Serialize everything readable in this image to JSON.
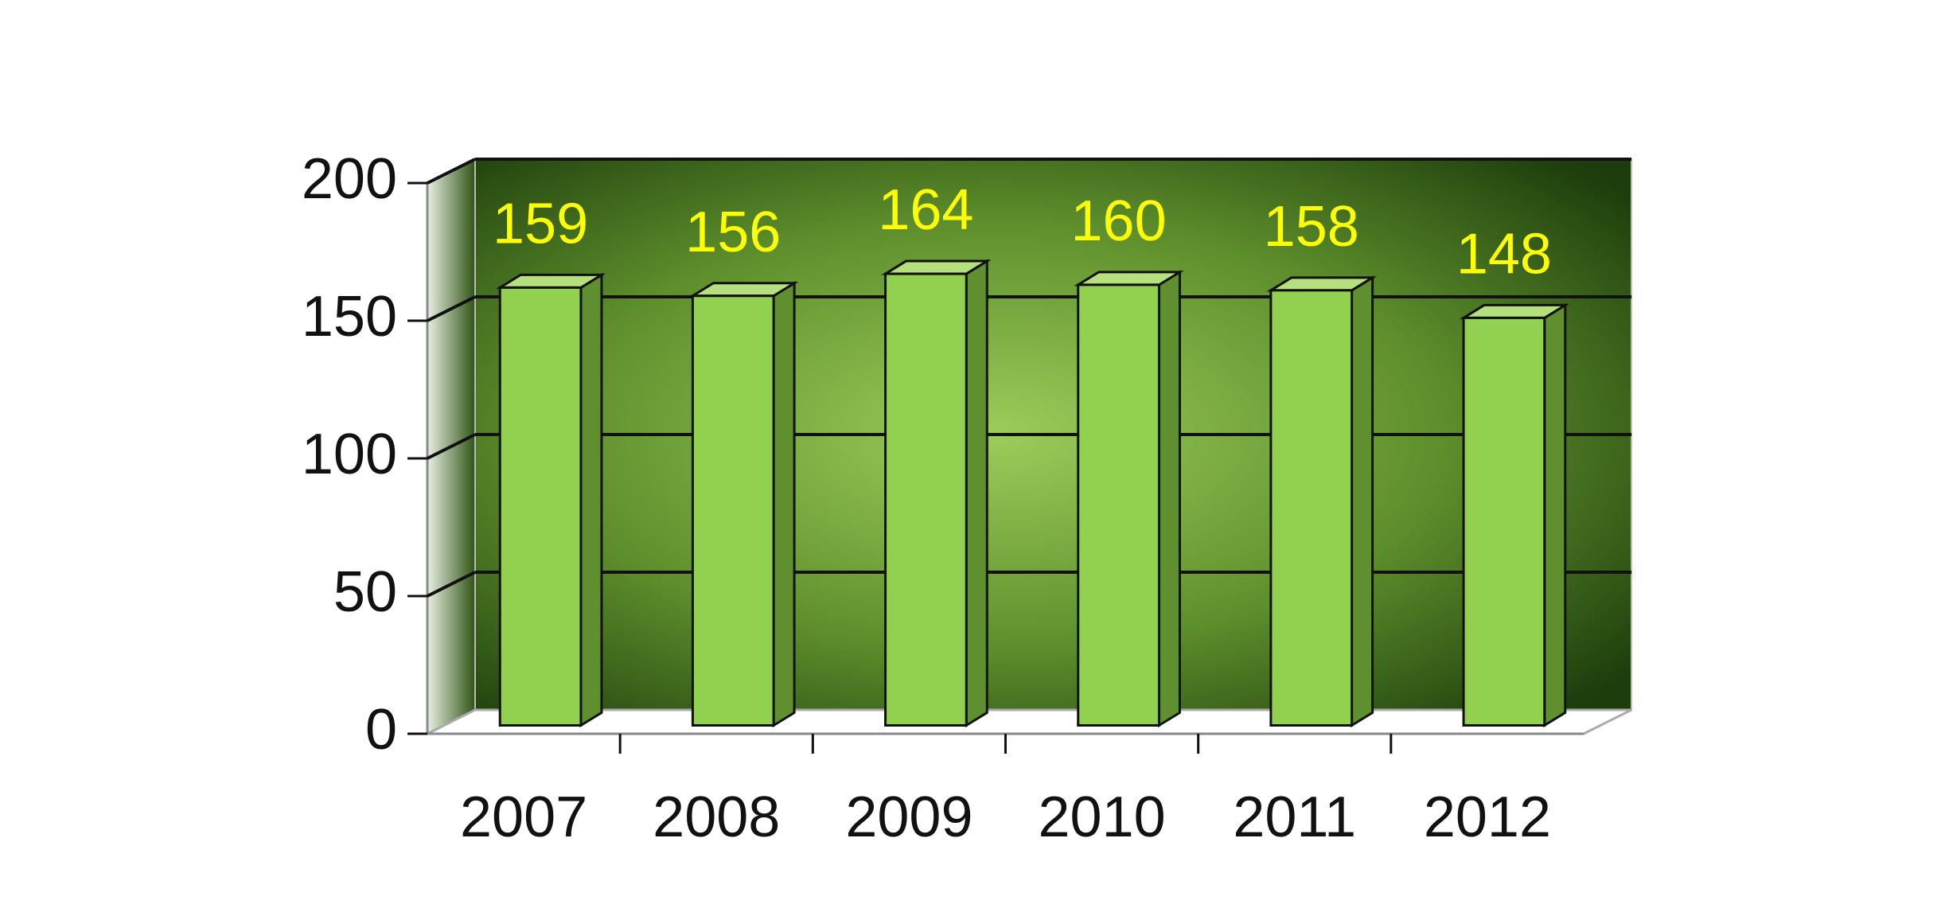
{
  "chart_data": {
    "type": "bar",
    "categories": [
      "2007",
      "2008",
      "2009",
      "2010",
      "2011",
      "2012"
    ],
    "values": [
      159,
      156,
      164,
      160,
      158,
      148
    ],
    "color": "#92d050",
    "ylim": [
      0,
      200
    ],
    "yticks": [
      0,
      50,
      100,
      150,
      200
    ],
    "grid": true
  }
}
